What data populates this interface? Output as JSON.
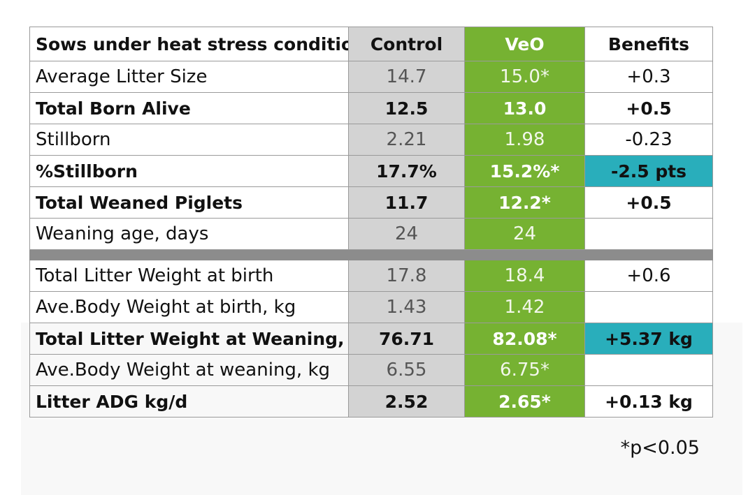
{
  "colors": {
    "control_column": "#d3d3d3",
    "veo_column": "#76b232",
    "benefit_highlight": "#29aebb",
    "divider": "#8c8c8c",
    "border": "#9a9a9a"
  },
  "chart_data": {
    "type": "table",
    "title": "",
    "columns": [
      "Sows under heat stress conditions",
      "Control",
      "VeO",
      "Benefits"
    ],
    "sections": [
      {
        "rows": [
          {
            "label": "Average Litter Size",
            "control": "14.7",
            "veo": "15.0*",
            "benefit": "+0.3",
            "bold": false,
            "highlight": false
          },
          {
            "label": "Total Born Alive",
            "control": "12.5",
            "veo": "13.0",
            "benefit": "+0.5",
            "bold": true,
            "highlight": false
          },
          {
            "label": "Stillborn",
            "control": "2.21",
            "veo": "1.98",
            "benefit": "-0.23",
            "bold": false,
            "highlight": false
          },
          {
            "label": "%Stillborn",
            "control": "17.7%",
            "veo": "15.2%*",
            "benefit": "-2.5 pts",
            "bold": true,
            "highlight": true
          },
          {
            "label": "Total Weaned Piglets",
            "control": "11.7",
            "veo": "12.2*",
            "benefit": "+0.5",
            "bold": true,
            "highlight": false
          },
          {
            "label": "Weaning age, days",
            "control": "24",
            "veo": "24",
            "benefit": "",
            "bold": false,
            "highlight": false
          }
        ]
      },
      {
        "rows": [
          {
            "label": "Total Litter Weight at birth",
            "control": "17.8",
            "veo": "18.4",
            "benefit": "+0.6",
            "bold": false,
            "highlight": false
          },
          {
            "label": "Ave.Body Weight at birth, kg",
            "control": "1.43",
            "veo": "1.42",
            "benefit": "",
            "bold": false,
            "highlight": false
          },
          {
            "label": "Total Litter Weight at Weaning, kg",
            "control": "76.71",
            "veo": "82.08*",
            "benefit": "+5.37 kg",
            "bold": true,
            "highlight": true
          },
          {
            "label": "Ave.Body Weight at weaning, kg",
            "control": "6.55",
            "veo": "6.75*",
            "benefit": "",
            "bold": false,
            "highlight": false
          },
          {
            "label": "Litter ADG kg/d",
            "control": "2.52",
            "veo": "2.65*",
            "benefit": "+0.13 kg",
            "bold": true,
            "highlight": false
          }
        ]
      }
    ],
    "footnote": "*p<0.05"
  }
}
